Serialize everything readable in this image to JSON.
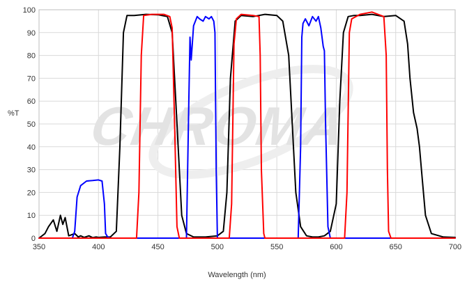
{
  "chart_data": {
    "type": "line",
    "title": "",
    "xlabel": "Wavelength (nm)",
    "ylabel": "%T",
    "xlim": [
      350,
      700
    ],
    "ylim": [
      0,
      100
    ],
    "xticks": [
      350,
      400,
      450,
      500,
      550,
      600,
      650,
      700
    ],
    "yticks": [
      0,
      10,
      20,
      30,
      40,
      50,
      60,
      70,
      80,
      90,
      100
    ],
    "grid": true,
    "legend": "none",
    "watermark": "CHROMA",
    "series": [
      {
        "color": "#000000",
        "x": [
          350,
          355,
          358,
          362,
          365,
          368,
          370,
          372,
          375,
          380,
          383,
          385,
          388,
          392,
          395,
          398,
          400,
          405,
          410,
          415,
          418,
          421,
          424,
          430,
          440,
          450,
          458,
          462,
          465,
          468,
          470,
          474,
          480,
          490,
          500,
          505,
          508,
          511,
          515,
          520,
          530,
          540,
          550,
          555,
          560,
          563,
          566,
          570,
          575,
          580,
          585,
          590,
          595,
          600,
          603,
          606,
          610,
          615,
          620,
          630,
          640,
          650,
          657,
          660,
          662,
          665,
          668,
          670,
          672,
          675,
          680,
          690,
          700
        ],
        "y": [
          0,
          2,
          5,
          8,
          3,
          10,
          6,
          9,
          1,
          2,
          0.5,
          1,
          0.3,
          1,
          0.2,
          0.5,
          0.3,
          0.5,
          0.5,
          3,
          40,
          90,
          97.5,
          97.5,
          98,
          97.8,
          97,
          90,
          60,
          30,
          10,
          2,
          0.5,
          0.5,
          1,
          3,
          20,
          70,
          95,
          97.5,
          97,
          98,
          97.5,
          95,
          80,
          50,
          20,
          5,
          1,
          0.5,
          0.5,
          1,
          3,
          15,
          60,
          90,
          97,
          97.5,
          97.5,
          98,
          97,
          97.5,
          95,
          85,
          70,
          55,
          48,
          40,
          28,
          10,
          2,
          0.5,
          0.3
        ]
      },
      {
        "color": "#0000ff",
        "x": [
          350,
          378,
          380,
          382,
          385,
          390,
          395,
          400,
          403,
          405,
          406,
          408,
          410,
          460,
          474,
          476,
          477,
          478,
          480,
          483,
          485,
          488,
          490,
          493,
          495,
          497,
          498,
          499,
          500,
          530,
          568,
          570,
          571,
          572,
          574,
          577,
          580,
          583,
          585,
          587,
          589,
          590,
          591,
          593,
          595,
          600,
          700
        ],
        "y": [
          0,
          0,
          3,
          18,
          23,
          25,
          25.2,
          25.5,
          25,
          15,
          2,
          0.3,
          0,
          0,
          0,
          60,
          88,
          78,
          93,
          97,
          96,
          95,
          97,
          96,
          97,
          95,
          90,
          30,
          0,
          0,
          0,
          40,
          88,
          94,
          96,
          93,
          97,
          95,
          97,
          92,
          84,
          82,
          50,
          5,
          0,
          0,
          0
        ]
      },
      {
        "color": "#ff0000",
        "x": [
          350,
          432,
          434,
          436,
          438,
          445,
          455,
          460,
          462,
          464,
          466,
          468,
          510,
          512,
          514,
          516,
          520,
          530,
          535,
          536,
          537,
          539,
          540,
          607,
          609,
          611,
          613,
          620,
          630,
          640,
          642,
          643,
          644,
          646,
          700
        ],
        "y": [
          0,
          0,
          20,
          80,
          97.5,
          98,
          98,
          97,
          92,
          50,
          5,
          0,
          0,
          15,
          85,
          96,
          98,
          97.5,
          97,
          80,
          30,
          2,
          0,
          0,
          20,
          90,
          96,
          98,
          99,
          97,
          80,
          30,
          3,
          0,
          0
        ]
      }
    ]
  }
}
